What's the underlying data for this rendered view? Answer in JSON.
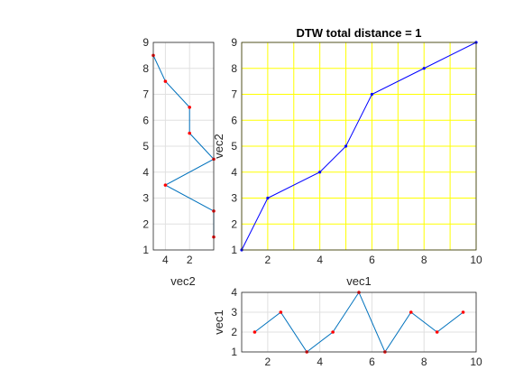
{
  "chart_data": [
    {
      "id": "main",
      "type": "line",
      "title": "DTW total distance = 1",
      "xlabel": "vec1",
      "ylabel": "vec2",
      "xlim": [
        1,
        10
      ],
      "ylim": [
        1,
        9
      ],
      "xticks": [
        2,
        4,
        6,
        8,
        10
      ],
      "yticks": [
        1,
        2,
        3,
        4,
        5,
        6,
        7,
        8,
        9
      ],
      "grid": true,
      "grid_color": "#ffff00",
      "line_color": "#0000ff",
      "x": [
        1,
        2,
        4,
        5,
        6,
        8,
        10
      ],
      "y": [
        1,
        3,
        4,
        5,
        7,
        8,
        9
      ]
    },
    {
      "id": "left",
      "type": "line",
      "xlabel": "vec2",
      "ylim": [
        1,
        9
      ],
      "xticks": [
        4,
        2
      ],
      "yticks": [
        1,
        2,
        3,
        4,
        5,
        6,
        7,
        8,
        9
      ],
      "x_reversed": true,
      "grid": true,
      "line_color": "#0072bd",
      "marker_color": "#ff0000",
      "values": [
        1.5,
        2.5,
        3.5,
        4.5,
        5.5,
        6.5,
        7.5,
        8.5
      ],
      "y": [
        1.5,
        2.5,
        3.5,
        4.5,
        5.5,
        6.5,
        7.5,
        8.5
      ],
      "x": [
        0,
        0,
        4,
        0,
        2,
        2,
        4,
        5
      ]
    },
    {
      "id": "bottom",
      "type": "line",
      "ylabel": "vec1",
      "ylim": [
        1,
        4
      ],
      "yticks": [
        1,
        2,
        3,
        4
      ],
      "xticks": [
        2,
        4,
        6,
        8,
        10
      ],
      "grid": true,
      "line_color": "#0072bd",
      "marker_color": "#ff0000",
      "x": [
        1.5,
        2.5,
        3.5,
        4.5,
        5.5,
        6.5,
        7.5,
        8.5,
        9.5
      ],
      "y": [
        2,
        3,
        1,
        2,
        4,
        1,
        3,
        2,
        3
      ]
    }
  ]
}
